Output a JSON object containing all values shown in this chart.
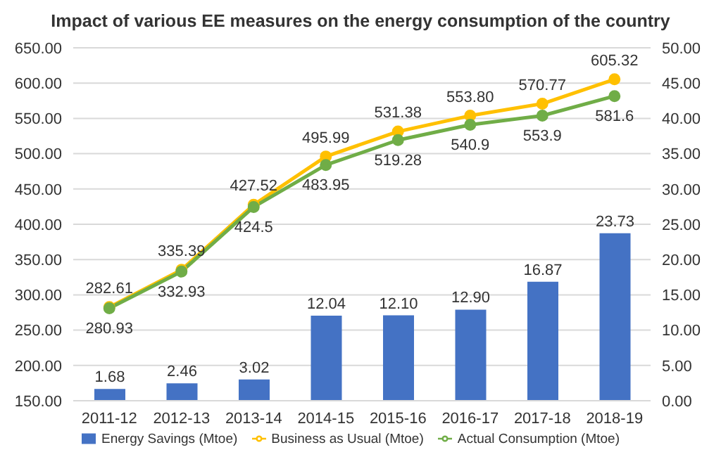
{
  "chart_data": {
    "type": "bar",
    "title": "Impact of various EE measures on the energy consumption of the country",
    "categories": [
      "2011-12",
      "2012-13",
      "2013-14",
      "2014-15",
      "2015-16",
      "2016-17",
      "2017-18",
      "2018-19"
    ],
    "series": [
      {
        "name": "Energy Savings (Mtoe)",
        "axis": "y2",
        "color": "#4472c4",
        "values": [
          1.68,
          2.46,
          3.02,
          12.04,
          12.1,
          12.9,
          16.87,
          23.73
        ],
        "value_labels": [
          "1.68",
          "2.46",
          "3.02",
          "12.04",
          "12.10",
          "12.90",
          "16.87",
          "23.73"
        ]
      },
      {
        "name": "Business as Usual (Mtoe)",
        "type": "line",
        "color": "#ffc000",
        "values": [
          282.61,
          335.39,
          427.52,
          495.99,
          531.38,
          553.8,
          570.77,
          605.32
        ],
        "value_labels": [
          "282.61",
          "335.39",
          "427.52",
          "495.99",
          "531.38",
          "553.80",
          "570.77",
          "605.32"
        ]
      },
      {
        "name": "Actual Consumption (Mtoe)",
        "type": "line",
        "color": "#70ad47",
        "values": [
          280.93,
          332.93,
          424.5,
          483.95,
          519.28,
          540.9,
          553.9,
          581.6
        ],
        "value_labels": [
          "280.93",
          "332.93",
          "424.5",
          "483.95",
          "519.28",
          "540.9",
          "553.9",
          "581.6"
        ]
      }
    ],
    "ylim": [
      150,
      650
    ],
    "yticks": [
      {
        "value": 150,
        "label": "150.00"
      },
      {
        "value": 200,
        "label": "200.00"
      },
      {
        "value": 250,
        "label": "250.00"
      },
      {
        "value": 300,
        "label": "300.00"
      },
      {
        "value": 350,
        "label": "350.00"
      },
      {
        "value": 400,
        "label": "400.00"
      },
      {
        "value": 450,
        "label": "450.00"
      },
      {
        "value": 500,
        "label": "500.00"
      },
      {
        "value": 550,
        "label": "550.00"
      },
      {
        "value": 600,
        "label": "600.00"
      },
      {
        "value": 650,
        "label": "650.00"
      }
    ],
    "y2lim": [
      0,
      50
    ],
    "y2ticks": [
      {
        "value": 0,
        "label": "0.00"
      },
      {
        "value": 5,
        "label": "5.00"
      },
      {
        "value": 10,
        "label": "10.00"
      },
      {
        "value": 15,
        "label": "15.00"
      },
      {
        "value": 20,
        "label": "20.00"
      },
      {
        "value": 25,
        "label": "25.00"
      },
      {
        "value": 30,
        "label": "30.00"
      },
      {
        "value": 35,
        "label": "35.00"
      },
      {
        "value": 40,
        "label": "40.00"
      },
      {
        "value": 45,
        "label": "45.00"
      },
      {
        "value": 50,
        "label": "50.00"
      }
    ],
    "grid": "y",
    "legend": "bottom",
    "marker": "circle",
    "line_style": "solid"
  }
}
